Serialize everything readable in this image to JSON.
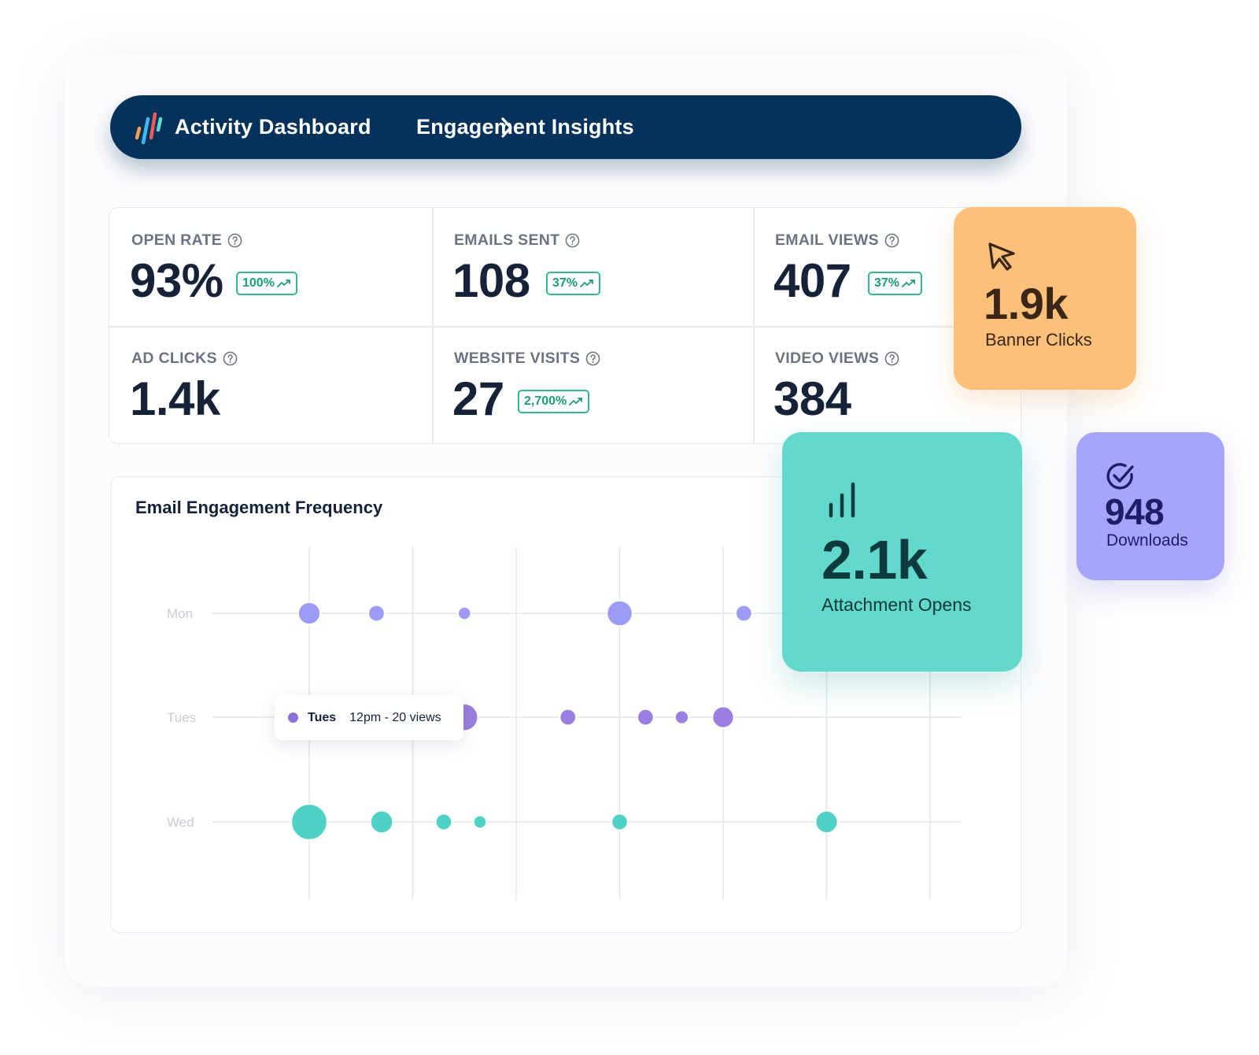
{
  "header": {
    "breadcrumb": [
      "Activity Dashboard",
      "Engagement Insights"
    ],
    "logo_colors": [
      "#f7a24a",
      "#3fb8f0",
      "#f15a5a",
      "#62d8cc"
    ]
  },
  "stats": [
    {
      "label": "OPEN RATE",
      "value": "93%",
      "badge": "100%"
    },
    {
      "label": "EMAILS SENT",
      "value": "108",
      "badge": "37%"
    },
    {
      "label": "EMAIL VIEWS",
      "value": "407",
      "badge": "37%"
    },
    {
      "label": "AD CLICKS",
      "value": "1.4k",
      "badge": null
    },
    {
      "label": "WEBSITE VISITS",
      "value": "27",
      "badge": "2,700%"
    },
    {
      "label": "VIDEO VIEWS",
      "value": "384",
      "badge": null
    }
  ],
  "cards": {
    "banner_clicks": {
      "value": "1.9k",
      "label": "Banner Clicks",
      "icon": "cursor-arrow-icon",
      "color": "#fdc07b"
    },
    "attachment_opens": {
      "value": "2.1k",
      "label": "Attachment Opens",
      "icon": "signal-bars-icon",
      "color": "#62d8cc"
    },
    "downloads": {
      "value": "948",
      "label": "Downloads",
      "icon": "check-circle-icon",
      "color": "#a6a4fb"
    }
  },
  "chart_data": {
    "type": "scatter",
    "title": "Email Engagement Frequency",
    "y_categories": [
      "Mon",
      "Tues",
      "Wed"
    ],
    "grid": true,
    "series": [
      {
        "category": "Mon",
        "color": "#9c9bf6",
        "points": [
          {
            "x": 0,
            "size": 3
          },
          {
            "x": 0.65,
            "size": 1.6
          },
          {
            "x": 1.5,
            "size": 1
          },
          {
            "x": 3,
            "size": 4
          },
          {
            "x": 4.2,
            "size": 1.6
          }
        ]
      },
      {
        "category": "Tues",
        "color": "#9c7ee0",
        "points": [
          {
            "x": 1.5,
            "size": 4.5
          },
          {
            "x": 2.5,
            "size": 1.6
          },
          {
            "x": 3.25,
            "size": 1.6
          },
          {
            "x": 3.6,
            "size": 1.1
          },
          {
            "x": 4,
            "size": 2.8
          }
        ]
      },
      {
        "category": "Wed",
        "color": "#4fd2c5",
        "points": [
          {
            "x": 0,
            "size": 8
          },
          {
            "x": 0.7,
            "size": 3.1
          },
          {
            "x": 1.3,
            "size": 1.6
          },
          {
            "x": 1.65,
            "size": 1
          },
          {
            "x": 3,
            "size": 1.6
          },
          {
            "x": 5,
            "size": 3
          }
        ]
      }
    ],
    "tooltip": {
      "day": "Tues",
      "text": "12pm - 20 views"
    }
  }
}
